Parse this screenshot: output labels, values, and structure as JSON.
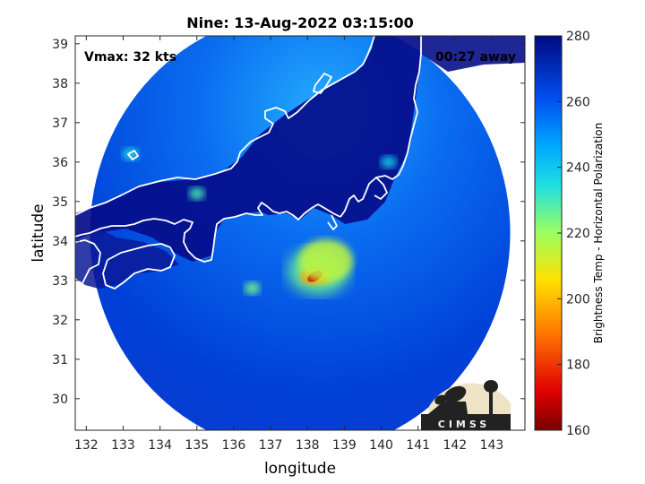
{
  "chart_data": {
    "type": "heatmap",
    "title": "Nine: 13-Aug-2022 03:15:00",
    "xlabel": "longitude",
    "ylabel": "latitude",
    "xlim": [
      131.7,
      143.9
    ],
    "ylim": [
      29.2,
      39.2
    ],
    "xticks": [
      132,
      133,
      134,
      135,
      136,
      137,
      138,
      139,
      140,
      141,
      142,
      143
    ],
    "yticks": [
      30,
      31,
      32,
      33,
      34,
      35,
      36,
      37,
      38,
      39
    ],
    "annotations": {
      "vmax": "Vmax: 32 kts",
      "away": "00:27 away"
    },
    "colorbar": {
      "label": "Brightness Temp - Horizontal Polarization",
      "min": 160,
      "max": 280,
      "ticks": [
        160,
        180,
        200,
        220,
        240,
        260,
        280
      ]
    },
    "swath": {
      "center_lon": 137.8,
      "center_lat": 34.2,
      "radius_deg": 5.7
    },
    "features": [
      {
        "lon": 138.2,
        "lat": 33.1,
        "tb": 170
      },
      {
        "lon": 138.5,
        "lat": 33.5,
        "tb": 215
      },
      {
        "lon": 136.5,
        "lat": 32.8,
        "tb": 225
      },
      {
        "lon": 135.0,
        "lat": 35.2,
        "tb": 230
      },
      {
        "lon": 140.2,
        "lat": 36.0,
        "tb": 238
      },
      {
        "lon": 133.2,
        "lat": 36.2,
        "tb": 235
      }
    ],
    "logo": "CIMSS"
  }
}
